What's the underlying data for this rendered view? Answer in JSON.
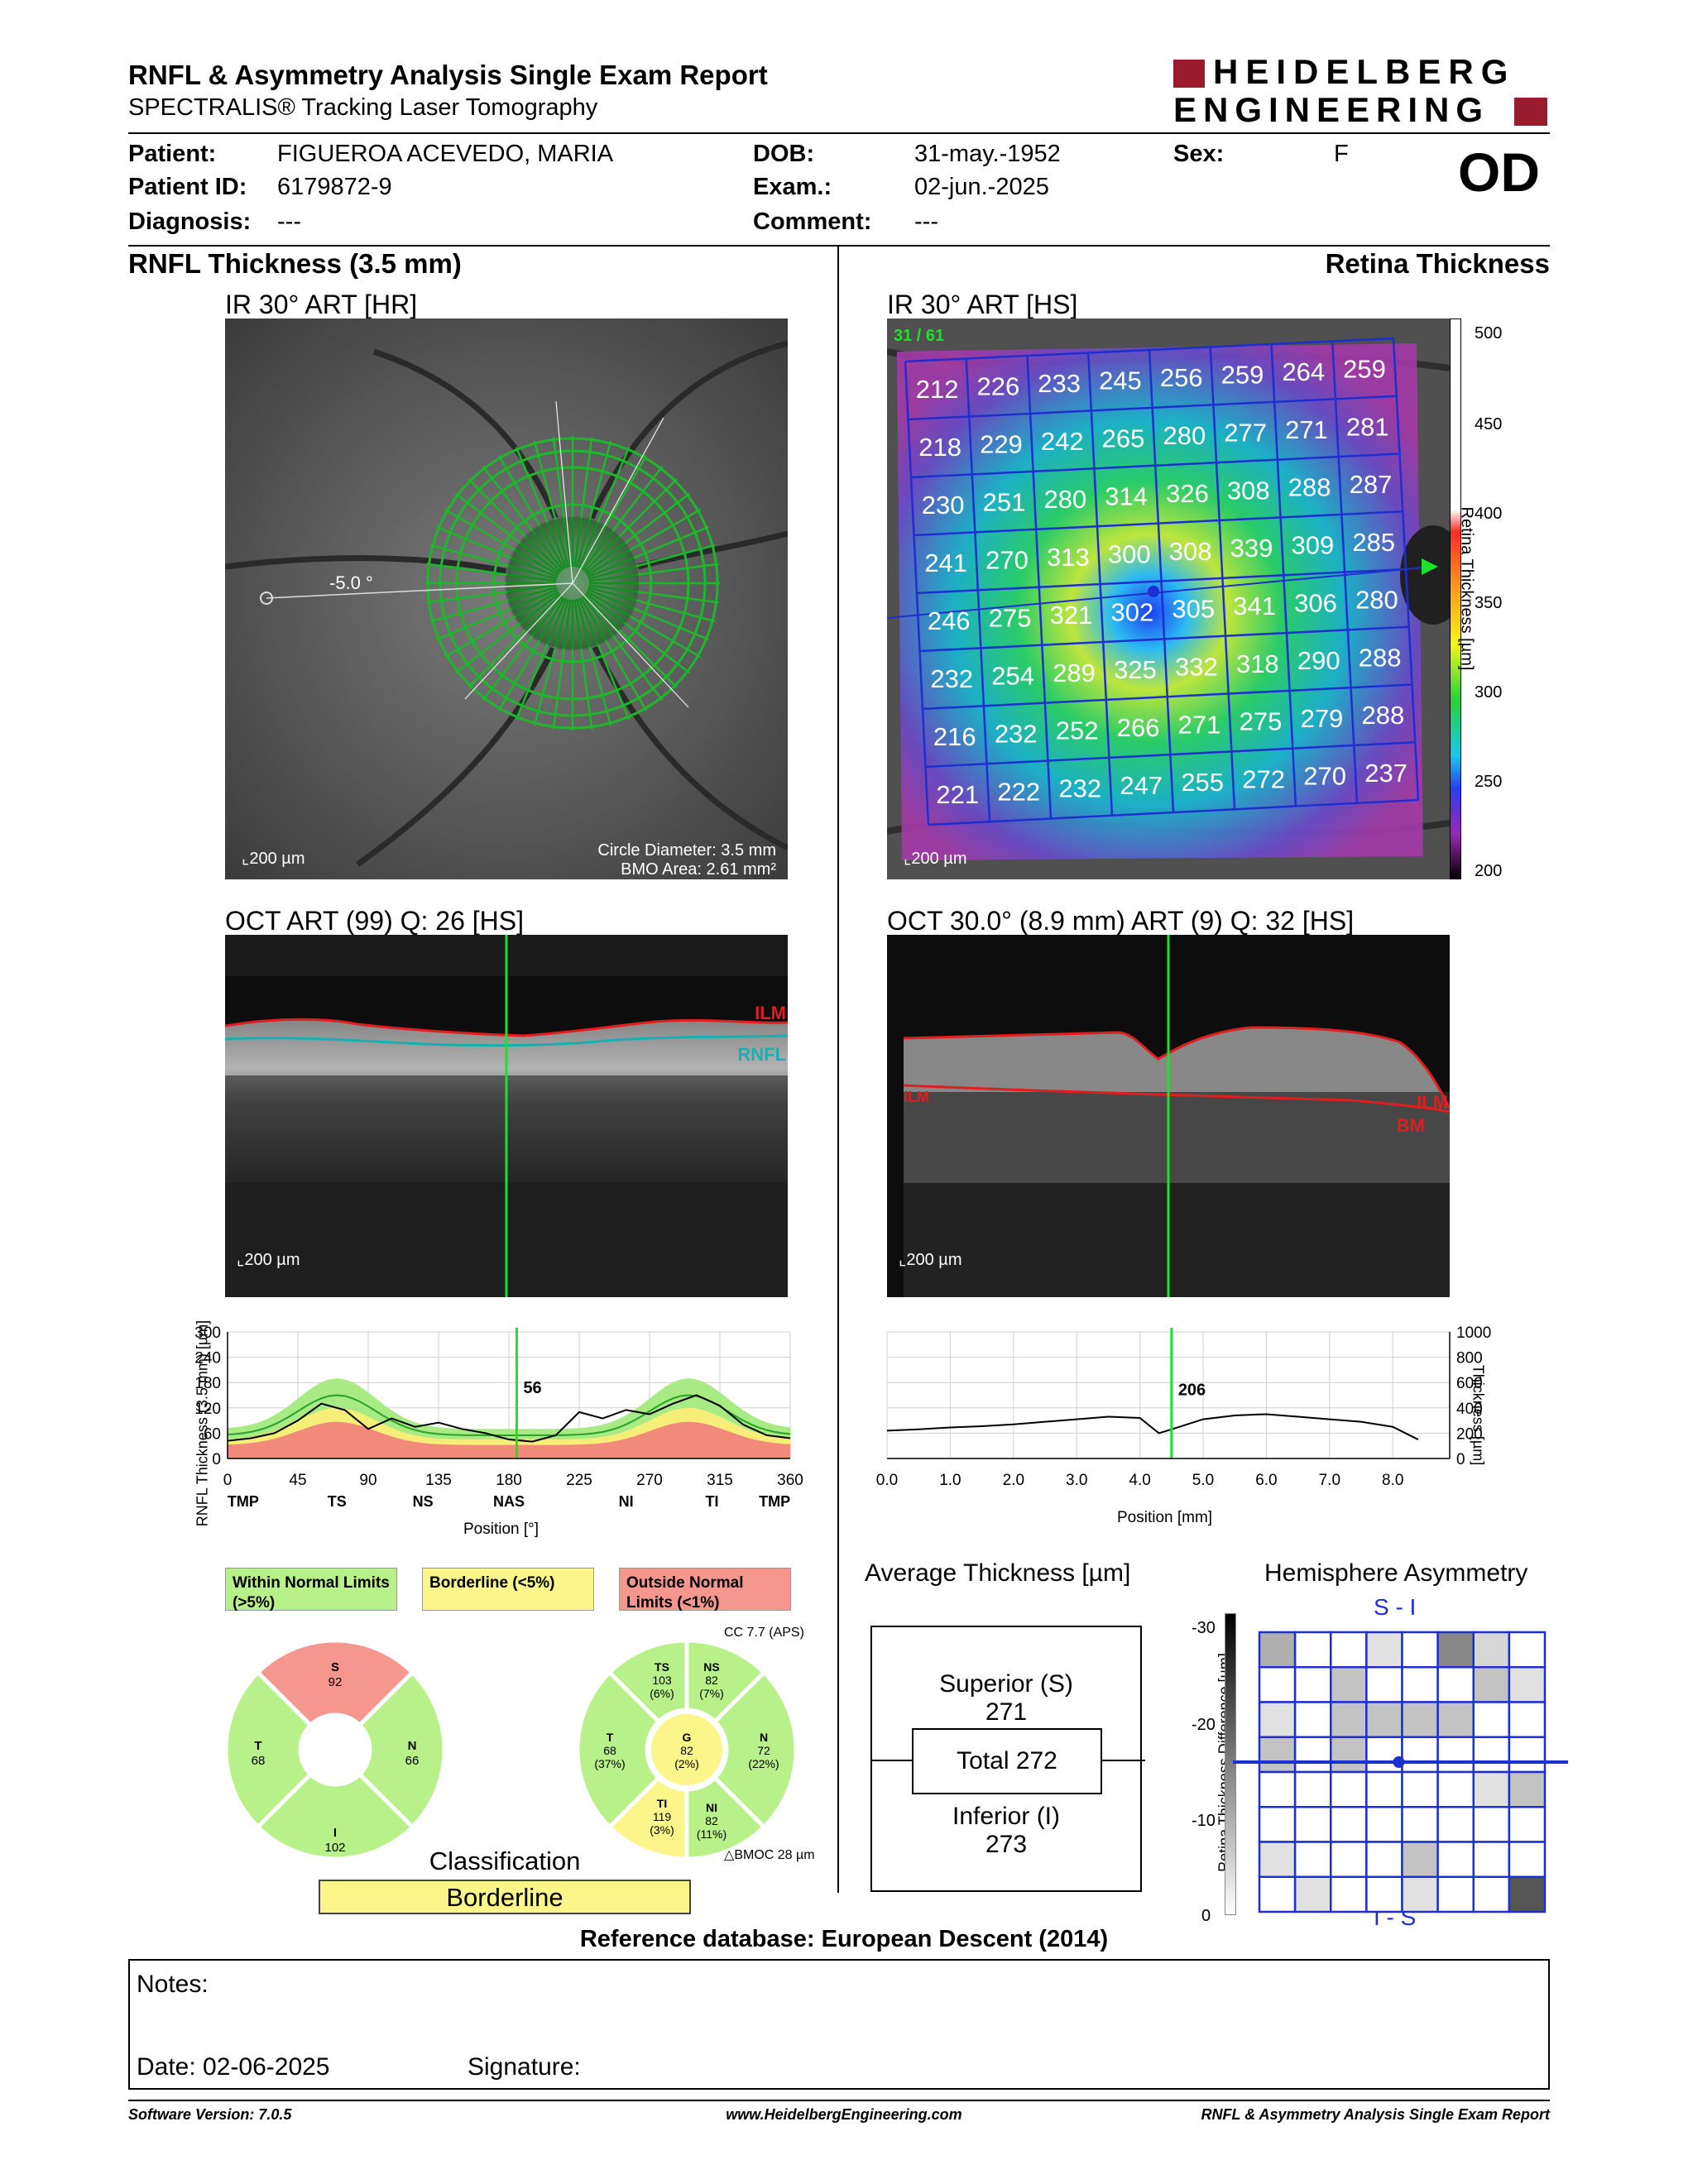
{
  "header": {
    "title": "RNFL & Asymmetry Analysis Single Exam Report",
    "subtitle": "SPECTRALIS® Tracking Laser Tomography",
    "logo_line1": "HEIDELBERG",
    "logo_line2": "ENGINEERING",
    "eye": "OD"
  },
  "patient": {
    "patient_label": "Patient:",
    "patient_value": "FIGUEROA ACEVEDO, MARIA",
    "id_label": "Patient ID:",
    "id_value": "6179872-9",
    "diag_label": "Diagnosis:",
    "diag_value": "---",
    "dob_label": "DOB:",
    "dob_value": "31-may.-1952",
    "exam_label": "Exam.:",
    "exam_value": "02-jun.-2025",
    "comment_label": "Comment:",
    "comment_value": "---",
    "sex_label": "Sex:",
    "sex_value": "F"
  },
  "left": {
    "section_title": "RNFL Thickness (3.5 mm)",
    "ir_title": "IR 30° ART [HR]",
    "angle_label": "-5.0 °",
    "scale_label": "200 µm",
    "circle_diameter": "Circle Diameter: 3.5 mm",
    "bmo_area": "BMO Area: 2.61 mm²",
    "oct_title": "OCT ART (99) Q: 26 [HS]",
    "oct_scale": "200 µm",
    "ilm": "ILM",
    "rnfl": "RNFL"
  },
  "right": {
    "section_title": "Retina Thickness",
    "ir_title": "IR 30° ART [HS]",
    "frame_counter": "31 / 61",
    "scale_label": "200 µm",
    "colorbar_ticks": [
      "500",
      "450",
      "400",
      "350",
      "300",
      "250",
      "200"
    ],
    "colorbar_label": "Retina Thickness [µm]",
    "grid_values": [
      [
        212,
        226,
        233,
        245,
        256,
        259,
        264,
        259
      ],
      [
        218,
        229,
        242,
        265,
        280,
        277,
        271,
        281
      ],
      [
        230,
        251,
        280,
        314,
        326,
        308,
        288,
        287
      ],
      [
        241,
        270,
        313,
        300,
        308,
        339,
        309,
        285
      ],
      [
        246,
        275,
        321,
        302,
        305,
        341,
        306,
        280
      ],
      [
        232,
        254,
        289,
        325,
        332,
        318,
        290,
        288
      ],
      [
        216,
        232,
        252,
        266,
        271,
        275,
        279,
        288
      ],
      [
        221,
        222,
        232,
        247,
        255,
        272,
        270,
        237
      ]
    ],
    "oct_title": "OCT 30.0° (8.9 mm) ART (9) Q: 32 [HS]",
    "oct_scale": "200 µm",
    "ilm_left": "ILM",
    "ilm": "ILM",
    "bm": "BM"
  },
  "rnfl_plot": {
    "ylabel": "RNFL Thickness (3.5 mm) [µm]",
    "xlabel": "Position [°]",
    "yticks": [
      "300",
      "240",
      "180",
      "120",
      "60",
      "0"
    ],
    "xticks": [
      "0",
      "45",
      "90",
      "135",
      "180",
      "225",
      "270",
      "315",
      "360"
    ],
    "sectors": [
      "TMP",
      "TS",
      "NS",
      "NAS",
      "NI",
      "TI",
      "TMP"
    ],
    "cursor_value": "56"
  },
  "retina_plot": {
    "ylabel": "Thickness [µm]",
    "xlabel": "Position [mm]",
    "yticks": [
      "1000",
      "800",
      "600",
      "400",
      "200",
      "0"
    ],
    "xticks": [
      "0.0",
      "1.0",
      "2.0",
      "3.0",
      "4.0",
      "5.0",
      "6.0",
      "7.0",
      "8.0"
    ],
    "cursor_value": "206"
  },
  "chart_data": [
    {
      "type": "line",
      "ylabel": "RNFL Thickness (3.5 mm) [µm]",
      "xlabel": "Position [°]",
      "xlim": [
        0,
        360
      ],
      "ylim": [
        0,
        300
      ],
      "x": [
        0,
        15,
        30,
        45,
        60,
        75,
        90,
        105,
        120,
        135,
        150,
        165,
        180,
        195,
        210,
        225,
        240,
        255,
        270,
        285,
        300,
        315,
        330,
        345,
        360
      ],
      "series": [
        {
          "values": [
            42,
            48,
            60,
            90,
            130,
            115,
            70,
            95,
            75,
            85,
            70,
            60,
            45,
            40,
            55,
            110,
            95,
            115,
            105,
            130,
            150,
            125,
            80,
            55,
            48
          ]
        }
      ],
      "cursor": {
        "x": 185,
        "value": 56
      }
    },
    {
      "type": "line",
      "ylabel": "Thickness [µm]",
      "xlabel": "Position [mm]",
      "xlim": [
        0,
        8.9
      ],
      "ylim": [
        0,
        1000
      ],
      "x": [
        0.0,
        0.5,
        1.0,
        1.5,
        2.0,
        2.5,
        3.0,
        3.5,
        4.0,
        4.3,
        4.5,
        5.0,
        5.5,
        6.0,
        6.5,
        7.0,
        7.5,
        8.0,
        8.4
      ],
      "series": [
        {
          "values": [
            220,
            230,
            245,
            255,
            270,
            290,
            310,
            330,
            320,
            200,
            230,
            310,
            340,
            350,
            330,
            310,
            290,
            250,
            150
          ]
        }
      ],
      "cursor": {
        "x": 4.5,
        "value": 206
      }
    }
  ],
  "legend": {
    "within": "Within Normal Limits (>5%)",
    "borderline": "Borderline (<5%)",
    "outside": "Outside Normal Limits (<1%)"
  },
  "quad_chart": {
    "S": {
      "label": "S",
      "value": "92"
    },
    "T": {
      "label": "T",
      "value": "68"
    },
    "N": {
      "label": "N",
      "value": "66"
    },
    "I": {
      "label": "I",
      "value": "102"
    }
  },
  "sector_chart": {
    "cc": "CC 7.7 (APS)",
    "TS": {
      "label": "TS",
      "value": "103",
      "pct": "(6%)"
    },
    "NS": {
      "label": "NS",
      "value": "82",
      "pct": "(7%)"
    },
    "T": {
      "label": "T",
      "value": "68",
      "pct": "(37%)"
    },
    "G": {
      "label": "G",
      "value": "82",
      "pct": "(2%)"
    },
    "N": {
      "label": "N",
      "value": "72",
      "pct": "(22%)"
    },
    "TI": {
      "label": "TI",
      "value": "119",
      "pct": "(3%)"
    },
    "NI": {
      "label": "NI",
      "value": "82",
      "pct": "(11%)"
    },
    "bmoc": "BMOC 28 µm"
  },
  "classification": {
    "title": "Classification",
    "value": "Borderline"
  },
  "average": {
    "title": "Average Thickness [µm]",
    "superior_label": "Superior (S)",
    "superior_value": "271",
    "total": "Total 272",
    "inferior_label": "Inferior (I)",
    "inferior_value": "273"
  },
  "asymmetry": {
    "title": "Hemisphere Asymmetry",
    "ylabel": "Retina Thickness Difference [µm]",
    "yticks": [
      "-30",
      "-20",
      "-10",
      "0"
    ],
    "top_label": "S - I",
    "bottom_label": "I - S",
    "cells": [
      [
        0.4,
        0,
        0,
        0.15,
        0,
        0.6,
        0.2,
        0
      ],
      [
        0,
        0,
        0.3,
        0,
        0,
        0,
        0.3,
        0.15
      ],
      [
        0.15,
        0,
        0.3,
        0.3,
        0.3,
        0.3,
        0,
        0
      ],
      [
        0.3,
        0,
        0.3,
        0,
        0,
        0,
        0,
        0
      ],
      [
        0,
        0,
        0,
        0,
        0,
        0,
        0.15,
        0.3
      ],
      [
        0,
        0,
        0,
        0,
        0,
        0,
        0,
        0
      ],
      [
        0.15,
        0,
        0,
        0,
        0.3,
        0,
        0,
        0
      ],
      [
        0,
        0.15,
        0,
        0,
        0.15,
        0,
        0,
        0.85
      ]
    ]
  },
  "reference": "Reference database: European Descent (2014)",
  "notes": {
    "notes_label": "Notes:",
    "date_label": "Date: 02-06-2025",
    "signature_label": "Signature:"
  },
  "footer": {
    "software": "Software Version: 7.0.5",
    "url": "www.HeidelbergEngineering.com",
    "report": "RNFL & Asymmetry Analysis Single Exam Report"
  },
  "colors": {
    "normal": "#b8f08a",
    "borderline": "#fbf58a",
    "outside": "#f5978f",
    "brand": "#9b1b2e",
    "grid_blue": "#1e2fd0"
  }
}
